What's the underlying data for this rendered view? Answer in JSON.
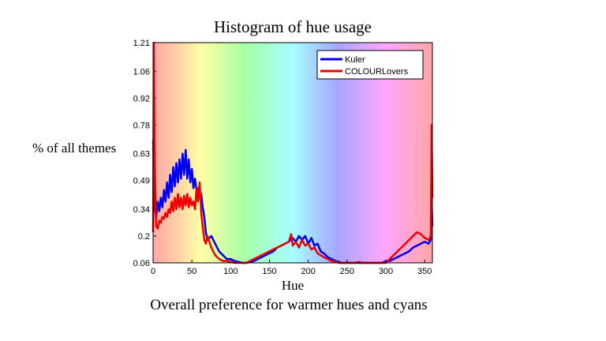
{
  "chart_data": {
    "type": "line",
    "title": "Histogram of hue usage",
    "xlabel": "Hue",
    "ylabel": "% of all themes",
    "caption": "Overall preference for warmer hues and cyans",
    "xlim": [
      0,
      360
    ],
    "ylim": [
      0.06,
      1.21
    ],
    "xticks": [
      0,
      50,
      100,
      150,
      200,
      250,
      300,
      350
    ],
    "xtick_labels": [
      "0",
      "50",
      "100",
      "150",
      "200",
      "250",
      "300",
      "350"
    ],
    "yticks": [
      0.06,
      0.2,
      0.34,
      0.49,
      0.63,
      0.78,
      0.92,
      1.06,
      1.21
    ],
    "ytick_labels": [
      "0.06",
      "0.2",
      "0.34",
      "0.49",
      "0.63",
      "0.78",
      "0.92",
      "1.06",
      "1.21"
    ],
    "background": "hue spectrum gradient",
    "legend_position": "top-right",
    "series": [
      {
        "name": "Kuler",
        "color": "#0000ee",
        "x": [
          0,
          2,
          4,
          6,
          8,
          10,
          12,
          14,
          16,
          18,
          20,
          22,
          24,
          26,
          28,
          30,
          32,
          34,
          36,
          38,
          40,
          42,
          44,
          46,
          48,
          50,
          52,
          54,
          56,
          58,
          60,
          62,
          64,
          66,
          68,
          70,
          75,
          80,
          85,
          90,
          95,
          100,
          105,
          110,
          115,
          120,
          125,
          130,
          135,
          140,
          145,
          150,
          155,
          160,
          165,
          170,
          175,
          180,
          184,
          188,
          192,
          196,
          200,
          204,
          208,
          212,
          216,
          220,
          225,
          230,
          235,
          240,
          242,
          244,
          246,
          250,
          255,
          260,
          265,
          270,
          275,
          280,
          285,
          290,
          295,
          300,
          305,
          310,
          315,
          320,
          325,
          330,
          335,
          340,
          345,
          350,
          355,
          358,
          359,
          360
        ],
        "values": [
          0.7,
          0.35,
          0.3,
          0.38,
          0.33,
          0.4,
          0.35,
          0.44,
          0.38,
          0.48,
          0.4,
          0.52,
          0.43,
          0.56,
          0.46,
          0.58,
          0.48,
          0.6,
          0.5,
          0.63,
          0.52,
          0.65,
          0.5,
          0.6,
          0.48,
          0.55,
          0.45,
          0.5,
          0.44,
          0.45,
          0.4,
          0.42,
          0.35,
          0.3,
          0.22,
          0.18,
          0.2,
          0.16,
          0.12,
          0.1,
          0.08,
          0.08,
          0.07,
          0.065,
          0.06,
          0.06,
          0.065,
          0.07,
          0.08,
          0.09,
          0.1,
          0.11,
          0.12,
          0.14,
          0.15,
          0.16,
          0.17,
          0.19,
          0.17,
          0.2,
          0.18,
          0.2,
          0.16,
          0.19,
          0.15,
          0.16,
          0.12,
          0.11,
          0.09,
          0.08,
          0.07,
          0.065,
          0.06,
          0.06,
          0.06,
          0.06,
          0.06,
          0.06,
          0.06,
          0.06,
          0.06,
          0.06,
          0.06,
          0.06,
          0.06,
          0.07,
          0.07,
          0.08,
          0.09,
          0.1,
          0.11,
          0.12,
          0.14,
          0.15,
          0.16,
          0.17,
          0.16,
          0.18,
          0.39,
          0.25
        ]
      },
      {
        "name": "COLOURLovers",
        "color": "#ee0000",
        "x": [
          0,
          1,
          2,
          4,
          6,
          8,
          10,
          12,
          14,
          16,
          18,
          20,
          22,
          24,
          26,
          28,
          30,
          32,
          34,
          36,
          38,
          40,
          42,
          44,
          46,
          48,
          50,
          52,
          54,
          56,
          58,
          60,
          62,
          64,
          66,
          68,
          70,
          75,
          80,
          85,
          90,
          95,
          100,
          105,
          110,
          115,
          120,
          125,
          130,
          135,
          140,
          145,
          150,
          155,
          160,
          165,
          170,
          175,
          178,
          180,
          184,
          188,
          192,
          196,
          200,
          204,
          208,
          212,
          216,
          220,
          225,
          230,
          235,
          240,
          242,
          244,
          246,
          250,
          255,
          260,
          265,
          270,
          275,
          280,
          285,
          290,
          295,
          300,
          305,
          310,
          315,
          320,
          325,
          330,
          335,
          340,
          345,
          350,
          355,
          358,
          359,
          360
        ],
        "values": [
          0.22,
          1.21,
          0.6,
          0.25,
          0.24,
          0.28,
          0.27,
          0.3,
          0.29,
          0.32,
          0.3,
          0.34,
          0.32,
          0.38,
          0.33,
          0.4,
          0.34,
          0.42,
          0.35,
          0.4,
          0.34,
          0.41,
          0.36,
          0.42,
          0.35,
          0.4,
          0.36,
          0.38,
          0.34,
          0.45,
          0.38,
          0.48,
          0.32,
          0.25,
          0.18,
          0.16,
          0.2,
          0.14,
          0.1,
          0.08,
          0.07,
          0.07,
          0.065,
          0.06,
          0.06,
          0.06,
          0.06,
          0.07,
          0.08,
          0.09,
          0.1,
          0.11,
          0.12,
          0.13,
          0.14,
          0.15,
          0.16,
          0.17,
          0.21,
          0.15,
          0.17,
          0.14,
          0.18,
          0.15,
          0.16,
          0.13,
          0.14,
          0.11,
          0.1,
          0.09,
          0.08,
          0.07,
          0.065,
          0.06,
          0.06,
          0.06,
          0.06,
          0.06,
          0.06,
          0.06,
          0.065,
          0.06,
          0.06,
          0.06,
          0.06,
          0.06,
          0.06,
          0.06,
          0.08,
          0.1,
          0.12,
          0.14,
          0.16,
          0.18,
          0.2,
          0.22,
          0.21,
          0.19,
          0.18,
          0.2,
          0.78,
          0.4
        ]
      }
    ]
  }
}
